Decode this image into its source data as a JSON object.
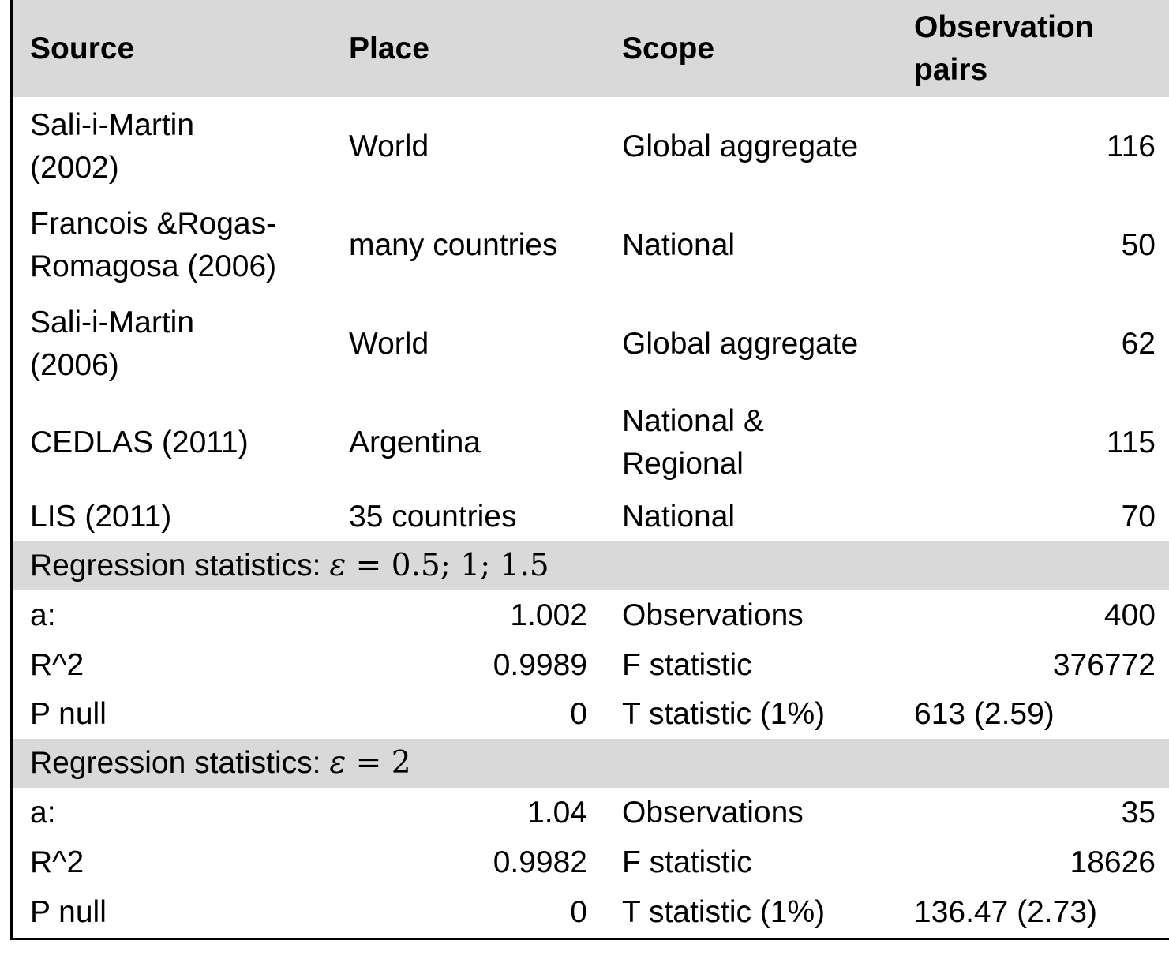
{
  "table": {
    "headers": {
      "source": "Source",
      "place": "Place",
      "scope": "Scope",
      "observation_pairs": "Observation pairs"
    },
    "sources": [
      {
        "source": "Sali-i-Martin (2002)",
        "place": "World",
        "scope": "Global aggregate",
        "pairs": "116"
      },
      {
        "source": "Francois &Rogas-Romagosa (2006)",
        "place": "many countries",
        "scope": "National",
        "pairs": "50"
      },
      {
        "source": "Sali-i-Martin (2006)",
        "place": "World",
        "scope": "Global aggregate",
        "pairs": "62"
      },
      {
        "source": "CEDLAS (2011)",
        "place": "Argentina",
        "scope": "National & Regional",
        "pairs": "115"
      },
      {
        "source": "LIS (2011)",
        "place": "35 countries",
        "scope": "National",
        "pairs": "70"
      }
    ],
    "regression_sections": [
      {
        "title_prefix": "Regression statistics:",
        "epsilon_symbol": "ε",
        "equals": "=",
        "epsilon_values": "0.5; 1; 1.5",
        "rows": [
          {
            "label": "a:",
            "value": "1.002",
            "stat_label": "Observations",
            "stat_value": "400"
          },
          {
            "label": "R^2",
            "value": "0.9989",
            "stat_label": "F statistic",
            "stat_value": "376772"
          },
          {
            "label": "P null",
            "value": "0",
            "stat_label": "T statistic (1%)",
            "stat_value": "613 (2.59)"
          }
        ]
      },
      {
        "title_prefix": "Regression statistics:",
        "epsilon_symbol": "ε",
        "equals": "=",
        "epsilon_values": "2",
        "rows": [
          {
            "label": "a:",
            "value": "1.04",
            "stat_label": "Observations",
            "stat_value": "35"
          },
          {
            "label": "R^2",
            "value": "0.9982",
            "stat_label": "F statistic",
            "stat_value": "18626"
          },
          {
            "label": "P null",
            "value": "0",
            "stat_label": "T statistic (1%)",
            "stat_value": "136.47 (2.73)"
          }
        ]
      }
    ]
  }
}
